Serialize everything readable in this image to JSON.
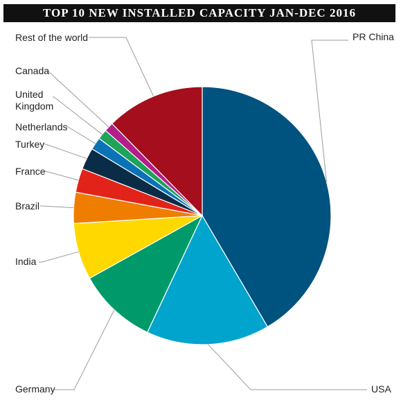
{
  "chart_data": {
    "type": "pie",
    "title": "TOP 10 NEW INSTALLED CAPACITY JAN-DEC 2016",
    "unit": "%",
    "start_angle_deg": 0,
    "direction": "clockwise",
    "legend": "none",
    "slices": [
      {
        "label": "PR China",
        "value": 42.7,
        "color": "#00527f"
      },
      {
        "label": "USA",
        "value": 15.9,
        "color": "#00a4cc"
      },
      {
        "label": "Germany",
        "value": 10.2,
        "color": "#009a6a"
      },
      {
        "label": "India",
        "value": 7.3,
        "color": "#ffd800"
      },
      {
        "label": "Brazil",
        "value": 4.0,
        "color": "#ef7d00"
      },
      {
        "label": "France",
        "value": 3.1,
        "color": "#e2231a"
      },
      {
        "label": "Turkey",
        "value": 2.8,
        "color": "#0b2c46"
      },
      {
        "label": "Netherlands",
        "value": 1.6,
        "color": "#0b73b5"
      },
      {
        "label": "United Kingdom",
        "value": 1.3,
        "color": "#1ea35a"
      },
      {
        "label": "Canada",
        "value": 1.2,
        "color": "#b21e8a"
      },
      {
        "label": "Rest of the world",
        "value": 12.7,
        "color": "#a50e1c"
      }
    ]
  }
}
